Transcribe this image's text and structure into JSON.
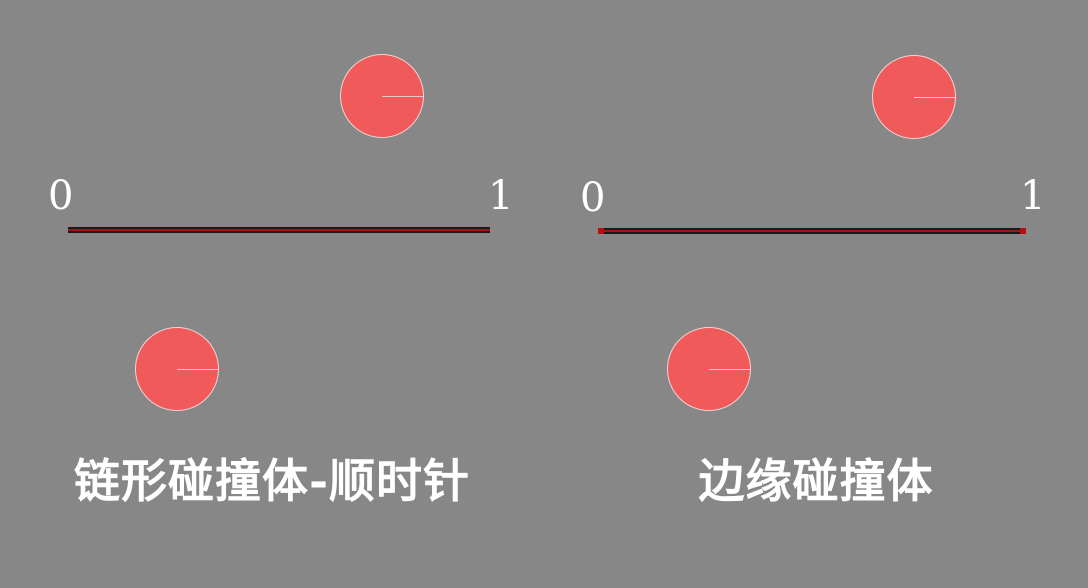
{
  "panels": [
    {
      "caption": "链形碰撞体-顺时针",
      "start_label": "0",
      "end_label": "1"
    },
    {
      "caption": "边缘碰撞体",
      "start_label": "0",
      "end_label": "1"
    }
  ],
  "colors": {
    "background": "#878787",
    "ball": "#f05a5b",
    "ball_outline": "#f3d3d3",
    "collider_line": "#1a1a1a",
    "collider_accent": "#a31313",
    "text": "#ffffff"
  }
}
